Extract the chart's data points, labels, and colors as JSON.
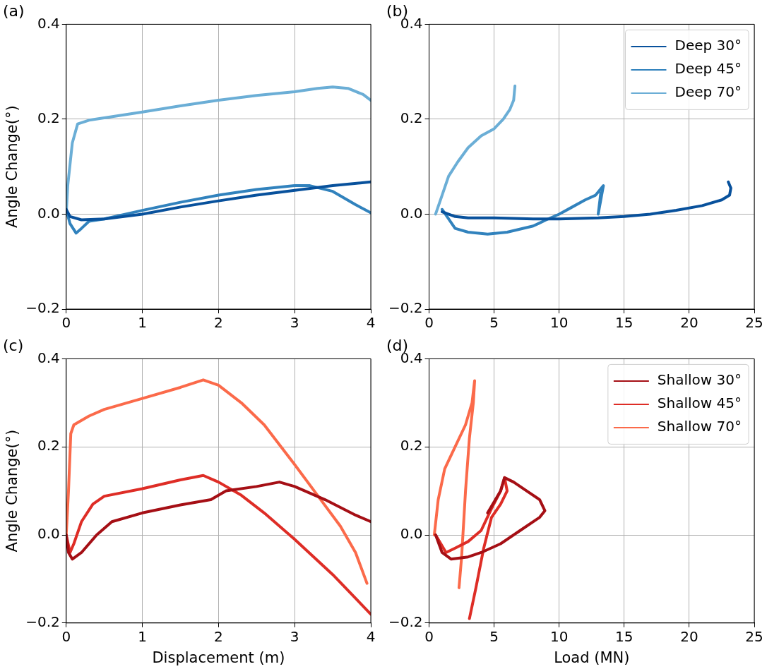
{
  "chart_data": [
    {
      "type": "line",
      "title": "(a)",
      "ylabel": "Angle Change(°)",
      "xlim": [
        0,
        4
      ],
      "xticks": [
        0,
        1,
        2,
        3,
        4
      ],
      "ylim": [
        -0.2,
        0.4
      ],
      "yticks": [
        {
          "value": -0.2,
          "label": "−0.2"
        },
        {
          "value": 0,
          "label": "0.0"
        },
        {
          "value": 0.2,
          "label": "0.2"
        },
        {
          "value": 0.4,
          "label": "0.4"
        }
      ],
      "grid": true,
      "series": [
        {
          "color": "#08519c",
          "x": [
            0,
            0.05,
            0.2,
            0.5,
            1,
            1.5,
            2,
            2.5,
            3,
            3.5,
            4
          ],
          "values": [
            0.01,
            -0.005,
            -0.012,
            -0.01,
            0.0,
            0.015,
            0.028,
            0.04,
            0.05,
            0.06,
            0.068
          ]
        },
        {
          "color": "#3182bd",
          "x": [
            0,
            0.05,
            0.13,
            0.2,
            0.3,
            0.5,
            1,
            1.5,
            2,
            2.5,
            3,
            3.2,
            3.5,
            3.8,
            4
          ],
          "values": [
            0.01,
            -0.02,
            -0.04,
            -0.03,
            -0.015,
            -0.01,
            0.008,
            0.025,
            0.04,
            0.052,
            0.06,
            0.06,
            0.048,
            0.02,
            0.003
          ]
        },
        {
          "color": "#6baed6",
          "x": [
            0,
            0.02,
            0.08,
            0.15,
            0.3,
            0.5,
            1,
            1.5,
            2,
            2.5,
            3,
            3.3,
            3.5,
            3.7,
            3.9,
            4
          ],
          "values": [
            0.0,
            0.06,
            0.15,
            0.19,
            0.198,
            0.203,
            0.215,
            0.228,
            0.24,
            0.25,
            0.258,
            0.265,
            0.268,
            0.265,
            0.252,
            0.24
          ]
        }
      ]
    },
    {
      "type": "line",
      "title": "(b)",
      "xlim": [
        0,
        25
      ],
      "xticks": [
        0,
        5,
        10,
        15,
        20,
        25
      ],
      "ylim": [
        -0.2,
        0.4
      ],
      "yticks": [
        {
          "value": -0.2,
          "label": "−0.2"
        },
        {
          "value": 0,
          "label": "0.0"
        },
        {
          "value": 0.2,
          "label": "0.2"
        },
        {
          "value": 0.4,
          "label": "0.4"
        }
      ],
      "grid": true,
      "legend": "top right",
      "series": [
        {
          "name": "Deep 30°",
          "color": "#08519c",
          "x": [
            1,
            2,
            3,
            5,
            8,
            10,
            13,
            15,
            17,
            19,
            21,
            22.5,
            23.1,
            23.2,
            23
          ],
          "values": [
            0.005,
            -0.005,
            -0.008,
            -0.008,
            -0.01,
            -0.01,
            -0.008,
            -0.005,
            0.0,
            0.008,
            0.018,
            0.03,
            0.04,
            0.055,
            0.068
          ]
        },
        {
          "name": "Deep 45°",
          "color": "#3182bd",
          "x": [
            1,
            2,
            3,
            4.5,
            6,
            8,
            9,
            10,
            11,
            12,
            12.8,
            13.4,
            13,
            13.2
          ],
          "values": [
            0.01,
            -0.03,
            -0.038,
            -0.042,
            -0.038,
            -0.025,
            -0.012,
            0.0,
            0.015,
            0.03,
            0.04,
            0.06,
            0.0,
            0.045
          ]
        },
        {
          "name": "Deep 70°",
          "color": "#6baed6",
          "x": [
            0.5,
            1,
            1.5,
            2.2,
            3,
            4,
            5,
            5.7,
            6.2,
            6.5,
            6.6
          ],
          "values": [
            0.0,
            0.04,
            0.08,
            0.11,
            0.14,
            0.165,
            0.18,
            0.2,
            0.22,
            0.24,
            0.27
          ]
        }
      ]
    },
    {
      "type": "line",
      "title": "(c)",
      "xlabel": "Displacement (m)",
      "ylabel": "Angle Change(°)",
      "xlim": [
        0,
        4
      ],
      "xticks": [
        0,
        1,
        2,
        3,
        4
      ],
      "ylim": [
        -0.2,
        0.4
      ],
      "yticks": [
        {
          "value": -0.2,
          "label": "−0.2"
        },
        {
          "value": 0,
          "label": "0.0"
        },
        {
          "value": 0.2,
          "label": "0.2"
        },
        {
          "value": 0.4,
          "label": "0.4"
        }
      ],
      "grid": true,
      "series": [
        {
          "color": "#a50f15",
          "x": [
            0,
            0.03,
            0.08,
            0.2,
            0.4,
            0.6,
            1,
            1.5,
            1.9,
            2,
            2.1,
            2.5,
            2.8,
            3,
            3.4,
            3.8,
            4
          ],
          "values": [
            0.0,
            -0.04,
            -0.055,
            -0.04,
            0.0,
            0.03,
            0.05,
            0.068,
            0.08,
            0.09,
            0.1,
            0.11,
            0.12,
            0.11,
            0.08,
            0.045,
            0.03
          ]
        },
        {
          "color": "#de2d26",
          "x": [
            0,
            0.05,
            0.1,
            0.2,
            0.35,
            0.5,
            1,
            1.5,
            1.8,
            2,
            2.3,
            2.6,
            3,
            3.5,
            4
          ],
          "values": [
            0.0,
            -0.04,
            -0.02,
            0.03,
            0.07,
            0.088,
            0.105,
            0.125,
            0.135,
            0.12,
            0.09,
            0.05,
            -0.01,
            -0.09,
            -0.18
          ]
        },
        {
          "color": "#fb6a4a",
          "x": [
            0,
            0.03,
            0.06,
            0.1,
            0.3,
            0.5,
            1,
            1.5,
            1.8,
            2,
            2.3,
            2.6,
            3,
            3.3,
            3.6,
            3.8,
            3.95
          ],
          "values": [
            0.0,
            0.1,
            0.23,
            0.25,
            0.27,
            0.285,
            0.31,
            0.335,
            0.352,
            0.34,
            0.3,
            0.25,
            0.16,
            0.09,
            0.02,
            -0.04,
            -0.11
          ]
        }
      ]
    },
    {
      "type": "line",
      "title": "(d)",
      "xlabel": "Load (MN)",
      "xlim": [
        0,
        25
      ],
      "xticks": [
        0,
        5,
        10,
        15,
        20,
        25
      ],
      "ylim": [
        -0.2,
        0.4
      ],
      "yticks": [
        {
          "value": -0.2,
          "label": "−0.2"
        },
        {
          "value": 0,
          "label": "0.0"
        },
        {
          "value": 0.2,
          "label": "0.2"
        },
        {
          "value": 0.4,
          "label": "0.4"
        }
      ],
      "grid": true,
      "legend": "top right",
      "series": [
        {
          "name": "Shallow 30°",
          "color": "#a50f15",
          "x": [
            0.5,
            1,
            1.7,
            3,
            4,
            5.5,
            7,
            8.5,
            8.9,
            8.5,
            7.5,
            6.5,
            5.8,
            5.5,
            4.5
          ],
          "values": [
            0.0,
            -0.04,
            -0.055,
            -0.05,
            -0.04,
            -0.02,
            0.01,
            0.04,
            0.055,
            0.08,
            0.1,
            0.12,
            0.13,
            0.1,
            0.05
          ]
        },
        {
          "name": "Shallow 45°",
          "color": "#de2d26",
          "x": [
            0.5,
            1.3,
            2,
            3,
            4,
            4.8,
            5.5,
            5.8,
            6,
            5.5,
            4.8,
            4.2,
            3.6,
            3.1
          ],
          "values": [
            0.0,
            -0.04,
            -0.03,
            -0.015,
            0.01,
            0.06,
            0.1,
            0.13,
            0.1,
            0.07,
            0.04,
            -0.03,
            -0.12,
            -0.19
          ]
        },
        {
          "name": "Shallow 70°",
          "color": "#fb6a4a",
          "x": [
            0.4,
            0.7,
            1.2,
            2,
            2.8,
            3.3,
            3.5,
            3.4,
            3.1,
            2.8,
            2.5,
            2.3
          ],
          "values": [
            0.0,
            0.08,
            0.15,
            0.2,
            0.25,
            0.3,
            0.35,
            0.3,
            0.22,
            0.1,
            -0.05,
            -0.12
          ]
        }
      ]
    }
  ]
}
